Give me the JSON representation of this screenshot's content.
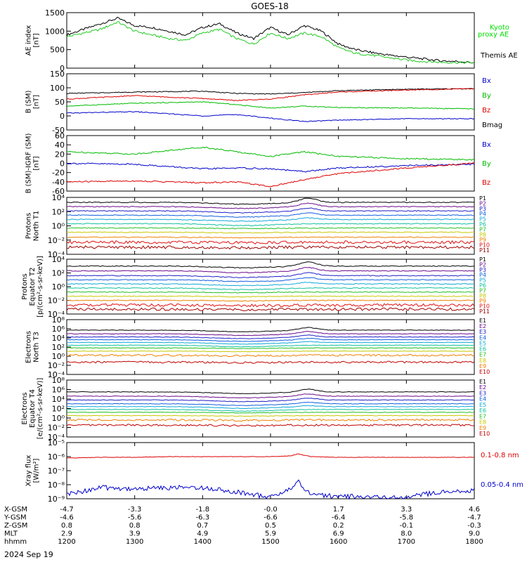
{
  "title": "GOES-18",
  "date_label": "2024 Sep 19",
  "x_axis": {
    "ticks": [
      "1200",
      "1300",
      "1400",
      "1500",
      "1600",
      "1700",
      "1800"
    ],
    "tick_values": [
      12,
      13,
      14,
      15,
      16,
      17,
      18
    ],
    "range": [
      12,
      18
    ],
    "ephemeris_rows": [
      {
        "label": "X-GSM",
        "values": [
          "-4.7",
          "-3.3",
          "-1.8",
          "-0.0",
          "1.7",
          "3.3",
          "4.6"
        ]
      },
      {
        "label": "Y-GSM",
        "values": [
          "-4.6",
          "-5.6",
          "-6.3",
          "-6.6",
          "-6.4",
          "-5.8",
          "-4.7"
        ]
      },
      {
        "label": "Z-GSM",
        "values": [
          "0.8",
          "0.8",
          "0.7",
          "0.5",
          "0.2",
          "-0.1",
          "-0.3"
        ]
      },
      {
        "label": "MLT",
        "values": [
          "2.9",
          "3.9",
          "4.9",
          "5.9",
          "6.9",
          "8.0",
          "9.0"
        ]
      },
      {
        "label": "hhmm",
        "values": [
          "1200",
          "1300",
          "1400",
          "1500",
          "1600",
          "1700",
          "1800"
        ]
      }
    ]
  },
  "panels": [
    {
      "ylabel": [
        "AE index",
        "[nT]"
      ],
      "yticks": [
        "0",
        "500",
        "1000",
        "1500"
      ]
    },
    {
      "ylabel": [
        "B (SM)",
        "[nT]"
      ],
      "yticks": [
        "-50",
        "0",
        "50",
        "100",
        "150"
      ]
    },
    {
      "ylabel": [
        "B (SM)-IGRF (SM)",
        "[nT]"
      ],
      "yticks": [
        "-60",
        "-40",
        "-20",
        "0",
        "20",
        "40",
        "60"
      ]
    },
    {
      "ylabel": [
        "Protons",
        "North T1"
      ],
      "yticks": [
        "10⁻⁴",
        "10⁻²",
        "10⁰",
        "10²",
        "10⁴"
      ]
    },
    {
      "ylabel": [
        "Protons",
        "Equator T2",
        "[p/(cm²-s-sr-keV)]"
      ],
      "yticks": [
        "10⁻⁴",
        "10⁻²",
        "10⁰",
        "10²",
        "10⁴"
      ]
    },
    {
      "ylabel": [
        "Electrons",
        "North T3"
      ],
      "yticks": [
        "10⁻⁴",
        "10⁻²",
        "10⁰",
        "10²",
        "10⁴",
        "10⁶",
        "10⁸"
      ]
    },
    {
      "ylabel": [
        "Electrons",
        "Equator T4",
        "[e/(cm²-s-sr-keV)]"
      ],
      "yticks": [
        "10⁻⁴",
        "10⁻²",
        "10⁰",
        "10²",
        "10⁴",
        "10⁶",
        "10⁸"
      ]
    },
    {
      "ylabel": [
        "Xray flux",
        "[W/m²]"
      ],
      "yticks": [
        "10⁻⁹",
        "10⁻⁸",
        "10⁻⁷",
        "10⁻⁶",
        "10⁻⁵"
      ]
    }
  ],
  "legends": {
    "ae": [
      {
        "label": "Kyoto",
        "color": "#00dd00"
      },
      {
        "label": "proxy AE",
        "color": "#00dd00"
      },
      {
        "label": "Themis AE",
        "color": "#000000"
      }
    ],
    "bsm": [
      {
        "label": "Bx",
        "color": "#0000cc"
      },
      {
        "label": "By",
        "color": "#00bb00"
      },
      {
        "label": "Bz",
        "color": "#dd0000"
      },
      {
        "label": "Bmag",
        "color": "#000000"
      }
    ],
    "bigrf": [
      {
        "label": "Bx",
        "color": "#0000cc"
      },
      {
        "label": "By",
        "color": "#00bb00"
      },
      {
        "label": "Bz",
        "color": "#dd0000"
      }
    ],
    "p1": [
      "P1",
      "P2",
      "P3",
      "P4",
      "P5",
      "P6",
      "P7",
      "P8",
      "P9",
      "P10",
      "P11"
    ],
    "p2": [
      "P1",
      "P2",
      "P3",
      "P4",
      "P5",
      "P6",
      "P7",
      "P8",
      "P9",
      "P10",
      "P11"
    ],
    "e1": [
      "E1",
      "E2",
      "E3",
      "E4",
      "E5",
      "E6",
      "E7",
      "E8",
      "E9",
      "E10"
    ],
    "e2": [
      "E1",
      "E2",
      "E3",
      "E4",
      "E5",
      "E6",
      "E7",
      "E8",
      "E9",
      "E10"
    ],
    "xray": [
      {
        "label": "0.1-0.8 nm",
        "color": "#dd0000"
      },
      {
        "label": "0.05-0.4 nm",
        "color": "#0000cc"
      }
    ]
  },
  "channel_colors_p": [
    "#000000",
    "#6a0a8a",
    "#2020c8",
    "#1060e0",
    "#10a8d8",
    "#10c0a0",
    "#20c020",
    "#c8c800",
    "#f08000",
    "#e01010",
    "#a00000"
  ],
  "channel_colors_e": [
    "#000000",
    "#6a0a8a",
    "#2020c8",
    "#1060e0",
    "#10a8d8",
    "#10c0a0",
    "#20c020",
    "#c8c800",
    "#f08000",
    "#c00000"
  ],
  "chart_data": [
    {
      "type": "line",
      "title": "GOES-18",
      "ylabel": "AE index [nT]",
      "ylim": [
        0,
        1500
      ],
      "x": [
        12.0,
        12.25,
        12.5,
        12.75,
        13.0,
        13.25,
        13.5,
        13.75,
        14.0,
        14.25,
        14.5,
        14.75,
        15.0,
        15.25,
        15.5,
        15.75,
        16.0,
        16.25,
        16.5,
        16.75,
        17.0,
        17.25,
        17.5,
        17.75,
        18.0
      ],
      "series": [
        {
          "name": "Themis AE",
          "values": [
            900,
            1050,
            1200,
            1350,
            1150,
            1100,
            1000,
            900,
            1100,
            1200,
            950,
            800,
            1100,
            900,
            1150,
            1000,
            650,
            500,
            420,
            350,
            300,
            250,
            200,
            180,
            150
          ]
        },
        {
          "name": "Kyoto proxy AE",
          "values": [
            850,
            950,
            1050,
            1250,
            1000,
            900,
            800,
            750,
            950,
            1050,
            800,
            650,
            950,
            800,
            950,
            850,
            550,
            400,
            350,
            280,
            220,
            180,
            160,
            150,
            150
          ]
        }
      ]
    },
    {
      "type": "line",
      "ylabel": "B (SM) [nT]",
      "ylim": [
        -50,
        150
      ],
      "x": [
        12.0,
        13.0,
        14.0,
        14.5,
        15.0,
        15.5,
        16.0,
        17.0,
        18.0
      ],
      "series": [
        {
          "name": "Bmag",
          "values": [
            80,
            85,
            88,
            80,
            78,
            83,
            90,
            95,
            97
          ]
        },
        {
          "name": "Bz",
          "values": [
            60,
            72,
            62,
            55,
            60,
            75,
            85,
            92,
            97
          ]
        },
        {
          "name": "By",
          "values": [
            35,
            45,
            50,
            40,
            28,
            35,
            30,
            28,
            25
          ]
        },
        {
          "name": "Bx",
          "values": [
            10,
            15,
            0,
            5,
            -8,
            -20,
            -15,
            -10,
            -10
          ]
        }
      ]
    },
    {
      "type": "line",
      "ylabel": "B (SM)-IGRF (SM) [nT]",
      "ylim": [
        -60,
        60
      ],
      "x": [
        12.0,
        13.0,
        14.0,
        14.5,
        15.0,
        15.5,
        16.0,
        17.0,
        18.0
      ],
      "series": [
        {
          "name": "By",
          "values": [
            25,
            20,
            35,
            25,
            15,
            25,
            15,
            10,
            8
          ]
        },
        {
          "name": "Bx",
          "values": [
            0,
            -2,
            -12,
            -10,
            -12,
            -18,
            -10,
            -5,
            -2
          ]
        },
        {
          "name": "Bz",
          "values": [
            -40,
            -38,
            -42,
            -40,
            -50,
            -35,
            -22,
            -10,
            0
          ]
        }
      ]
    },
    {
      "type": "line",
      "ylabel": "Protons North T1 (log10 flux)",
      "ylim": [
        -4,
        4
      ],
      "series_names": [
        "P1",
        "P2",
        "P3",
        "P4",
        "P5",
        "P6",
        "P7",
        "P8",
        "P9",
        "P10",
        "P11"
      ],
      "base_log_levels": [
        3.3,
        2.7,
        2.1,
        1.5,
        0.9,
        0.3,
        -0.3,
        -0.9,
        -1.6,
        -2.3,
        -3.0
      ]
    },
    {
      "type": "line",
      "ylabel": "Protons Equator T2 (log10 flux)",
      "ylim": [
        -4,
        4
      ],
      "series_names": [
        "P1",
        "P2",
        "P3",
        "P4",
        "P5",
        "P6",
        "P7",
        "P8",
        "P9",
        "P10",
        "P11"
      ],
      "base_log_levels": [
        3.0,
        2.3,
        1.6,
        1.0,
        0.4,
        -0.2,
        -0.8,
        -1.4,
        -2.0,
        -2.7,
        -3.3
      ]
    },
    {
      "type": "line",
      "ylabel": "Electrons North T3 (log10 flux)",
      "ylim": [
        -4,
        8
      ],
      "series_names": [
        "E1",
        "E2",
        "E3",
        "E4",
        "E5",
        "E6",
        "E7",
        "E8",
        "E9",
        "E10"
      ],
      "base_log_levels": [
        5.7,
        4.9,
        4.2,
        3.6,
        3.0,
        2.4,
        1.8,
        1.1,
        0.2,
        -1.3
      ]
    },
    {
      "type": "line",
      "ylabel": "Electrons Equator T4 (log10 flux)",
      "ylim": [
        -4,
        8
      ],
      "series_names": [
        "E1",
        "E2",
        "E3",
        "E4",
        "E5",
        "E6",
        "E7",
        "E8",
        "E9",
        "E10"
      ],
      "base_log_levels": [
        5.5,
        4.6,
        3.8,
        3.0,
        2.4,
        1.8,
        1.2,
        0.5,
        -0.4,
        -1.5
      ]
    },
    {
      "type": "line",
      "ylabel": "Xray flux [W/m²]",
      "ylim": [
        -9,
        -5
      ],
      "x": [
        12.0,
        12.5,
        13.0,
        13.5,
        14.0,
        14.5,
        15.0,
        15.3,
        15.4,
        15.5,
        15.6,
        16.0,
        16.5,
        17.0,
        17.5,
        18.0
      ],
      "series": [
        {
          "name": "0.1-0.8 nm",
          "values": [
            -6.1,
            -6.05,
            -6.05,
            -6.0,
            -6.0,
            -6.0,
            -6.0,
            -5.95,
            -5.8,
            -5.9,
            -6.0,
            -6.05,
            -6.05,
            -6.05,
            -6.05,
            -6.05
          ]
        },
        {
          "name": "0.05-0.4 nm",
          "values": [
            -8.7,
            -8.2,
            -8.3,
            -8.2,
            -8.2,
            -8.5,
            -8.9,
            -8.3,
            -7.7,
            -8.3,
            -8.7,
            -8.8,
            -8.9,
            -8.9,
            -8.5,
            -8.4
          ]
        }
      ]
    }
  ]
}
